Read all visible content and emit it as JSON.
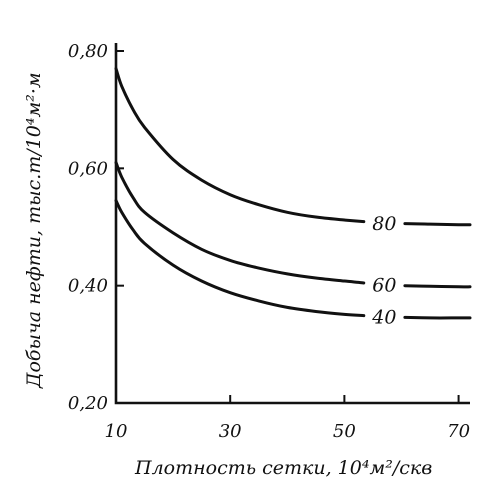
{
  "chart_data": {
    "type": "line",
    "title": "",
    "xlabel": "Плотность сетки, 10⁴м²/скв",
    "ylabel": "Добыча нефти, тыс.т/10⁴м²·м",
    "xlim": [
      10,
      72
    ],
    "ylim": [
      0.2,
      0.8
    ],
    "x_ticks": [
      "10",
      "30",
      "50",
      "70"
    ],
    "y_ticks": [
      "0,20",
      "0,40",
      "0,60",
      "0,80"
    ],
    "grid": false,
    "legend": "none",
    "series": [
      {
        "name": "80",
        "x": [
          10,
          11,
          13,
          15,
          20,
          25,
          30,
          35,
          40,
          45,
          50,
          55,
          60,
          65,
          70,
          72
        ],
        "y": [
          0.77,
          0.74,
          0.7,
          0.67,
          0.615,
          0.58,
          0.555,
          0.538,
          0.525,
          0.517,
          0.512,
          0.508,
          0.506,
          0.505,
          0.504,
          0.504
        ]
      },
      {
        "name": "60",
        "x": [
          10,
          11,
          13,
          15,
          20,
          25,
          30,
          35,
          40,
          45,
          50,
          55,
          60,
          65,
          70,
          72
        ],
        "y": [
          0.61,
          0.585,
          0.55,
          0.525,
          0.49,
          0.462,
          0.443,
          0.43,
          0.42,
          0.413,
          0.408,
          0.403,
          0.4,
          0.399,
          0.398,
          0.398
        ]
      },
      {
        "name": "40",
        "x": [
          10,
          11,
          13,
          15,
          20,
          25,
          30,
          35,
          40,
          45,
          50,
          55,
          60,
          65,
          70,
          72
        ],
        "y": [
          0.545,
          0.525,
          0.495,
          0.472,
          0.435,
          0.408,
          0.388,
          0.374,
          0.363,
          0.356,
          0.351,
          0.348,
          0.346,
          0.345,
          0.345,
          0.345
        ]
      }
    ]
  }
}
